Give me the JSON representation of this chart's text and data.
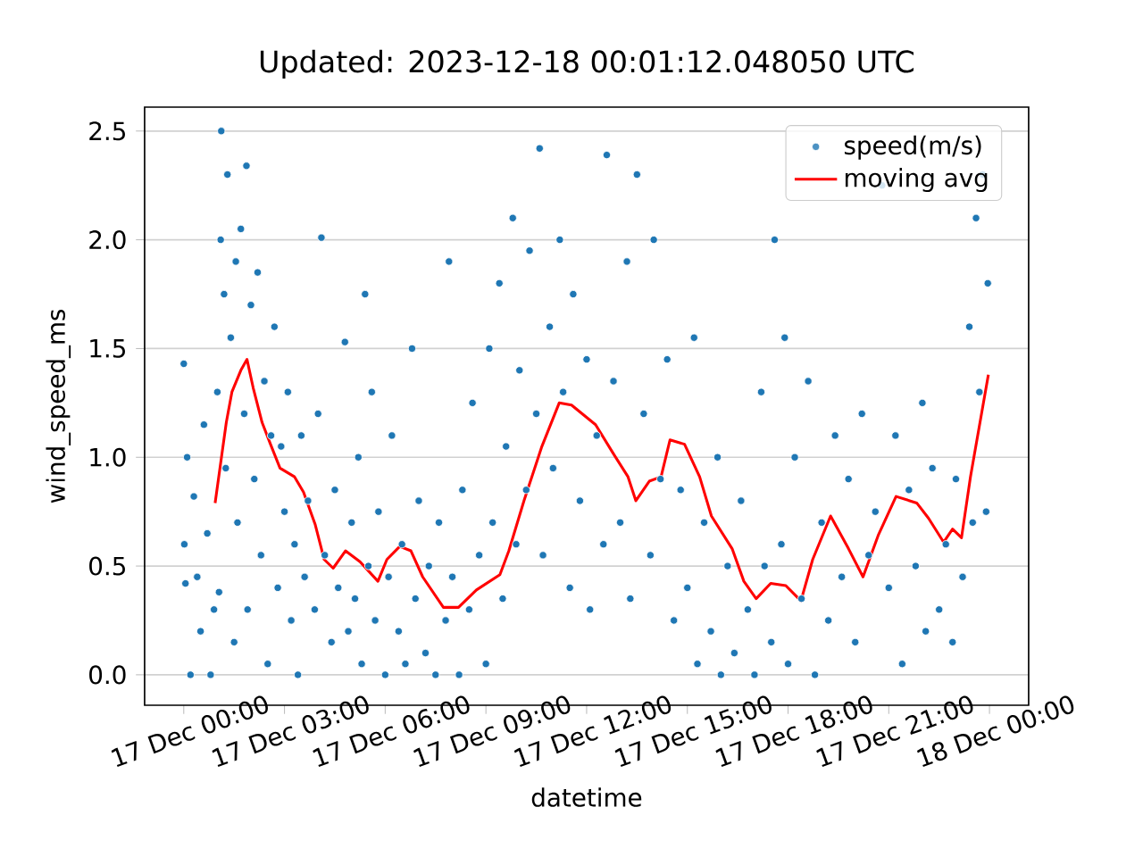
{
  "chart_data": {
    "type": "scatter",
    "title": "Updated: 2023-12-18 00:01:12.048050 UTC",
    "xlabel": "datetime",
    "ylabel": "wind_speed_ms",
    "xlim": [
      "2023-12-16T22:50",
      "2023-12-18T01:10"
    ],
    "ylim": [
      -0.14,
      2.61
    ],
    "xticks": [
      {
        "value": "2023-12-17T00:00",
        "label": "17 Dec 00:00"
      },
      {
        "value": "2023-12-17T03:00",
        "label": "17 Dec 03:00"
      },
      {
        "value": "2023-12-17T06:00",
        "label": "17 Dec 06:00"
      },
      {
        "value": "2023-12-17T09:00",
        "label": "17 Dec 09:00"
      },
      {
        "value": "2023-12-17T12:00",
        "label": "17 Dec 12:00"
      },
      {
        "value": "2023-12-17T15:00",
        "label": "17 Dec 15:00"
      },
      {
        "value": "2023-12-17T18:00",
        "label": "17 Dec 18:00"
      },
      {
        "value": "2023-12-17T21:00",
        "label": "17 Dec 21:00"
      },
      {
        "value": "2023-12-18T00:00",
        "label": "18 Dec 00:00"
      }
    ],
    "yticks": [
      {
        "value": 0,
        "label": "0.0"
      },
      {
        "value": 0.5,
        "label": "0.5"
      },
      {
        "value": 1,
        "label": "1.0"
      },
      {
        "value": 1.5,
        "label": "1.5"
      },
      {
        "value": 2,
        "label": "2.0"
      },
      {
        "value": 2.5,
        "label": "2.5"
      }
    ],
    "grid": "y",
    "legend": "top right",
    "series": [
      {
        "name": "speed(m/s)",
        "type": "scatter",
        "marker": "circle",
        "color": "#1f77b4",
        "x": [
          "2023-12-17T00:00",
          "2023-12-17T00:01",
          "2023-12-17T00:03",
          "2023-12-17T00:06",
          "2023-12-17T00:12",
          "2023-12-17T00:18",
          "2023-12-17T00:24",
          "2023-12-17T00:30",
          "2023-12-17T00:36",
          "2023-12-17T00:42",
          "2023-12-17T00:48",
          "2023-12-17T00:54",
          "2023-12-17T01:00",
          "2023-12-17T01:03",
          "2023-12-17T01:06",
          "2023-12-17T01:07",
          "2023-12-17T01:12",
          "2023-12-17T01:15",
          "2023-12-17T01:18",
          "2023-12-17T01:24",
          "2023-12-17T01:30",
          "2023-12-17T01:33",
          "2023-12-17T01:36",
          "2023-12-17T01:42",
          "2023-12-17T01:48",
          "2023-12-17T01:52",
          "2023-12-17T01:54",
          "2023-12-17T02:00",
          "2023-12-17T02:06",
          "2023-12-17T02:12",
          "2023-12-17T02:18",
          "2023-12-17T02:24",
          "2023-12-17T02:30",
          "2023-12-17T02:36",
          "2023-12-17T02:42",
          "2023-12-17T02:48",
          "2023-12-17T02:54",
          "2023-12-17T03:00",
          "2023-12-17T03:06",
          "2023-12-17T03:12",
          "2023-12-17T03:18",
          "2023-12-17T03:24",
          "2023-12-17T03:30",
          "2023-12-17T03:36",
          "2023-12-17T03:42",
          "2023-12-17T03:54",
          "2023-12-17T04:00",
          "2023-12-17T04:06",
          "2023-12-17T04:12",
          "2023-12-17T04:24",
          "2023-12-17T04:30",
          "2023-12-17T04:36",
          "2023-12-17T04:48",
          "2023-12-17T04:54",
          "2023-12-17T05:00",
          "2023-12-17T05:06",
          "2023-12-17T05:12",
          "2023-12-17T05:18",
          "2023-12-17T05:24",
          "2023-12-17T05:30",
          "2023-12-17T05:36",
          "2023-12-17T05:42",
          "2023-12-17T05:48",
          "2023-12-17T06:00",
          "2023-12-17T06:06",
          "2023-12-17T06:12",
          "2023-12-17T06:24",
          "2023-12-17T06:30",
          "2023-12-17T06:36",
          "2023-12-17T06:48",
          "2023-12-17T06:54",
          "2023-12-17T07:00",
          "2023-12-17T07:12",
          "2023-12-17T07:18",
          "2023-12-17T07:30",
          "2023-12-17T07:36",
          "2023-12-17T07:48",
          "2023-12-17T07:54",
          "2023-12-17T08:00",
          "2023-12-17T08:12",
          "2023-12-17T08:18",
          "2023-12-17T08:30",
          "2023-12-17T08:36",
          "2023-12-17T08:48",
          "2023-12-17T09:00",
          "2023-12-17T09:06",
          "2023-12-17T09:12",
          "2023-12-17T09:24",
          "2023-12-17T09:30",
          "2023-12-17T09:36",
          "2023-12-17T09:48",
          "2023-12-17T09:54",
          "2023-12-17T10:00",
          "2023-12-17T10:12",
          "2023-12-17T10:18",
          "2023-12-17T10:30",
          "2023-12-17T10:36",
          "2023-12-17T10:42",
          "2023-12-17T10:54",
          "2023-12-17T11:00",
          "2023-12-17T11:12",
          "2023-12-17T11:18",
          "2023-12-17T11:30",
          "2023-12-17T11:36",
          "2023-12-17T11:48",
          "2023-12-17T12:00",
          "2023-12-17T12:06",
          "2023-12-17T12:18",
          "2023-12-17T12:30",
          "2023-12-17T12:36",
          "2023-12-17T12:48",
          "2023-12-17T13:00",
          "2023-12-17T13:12",
          "2023-12-17T13:18",
          "2023-12-17T13:30",
          "2023-12-17T13:42",
          "2023-12-17T13:54",
          "2023-12-17T14:00",
          "2023-12-17T14:12",
          "2023-12-17T14:24",
          "2023-12-17T14:36",
          "2023-12-17T14:48",
          "2023-12-17T15:00",
          "2023-12-17T15:12",
          "2023-12-17T15:18",
          "2023-12-17T15:30",
          "2023-12-17T15:42",
          "2023-12-17T15:54",
          "2023-12-17T16:00",
          "2023-12-17T16:12",
          "2023-12-17T16:24",
          "2023-12-17T16:36",
          "2023-12-17T16:48",
          "2023-12-17T17:00",
          "2023-12-17T17:12",
          "2023-12-17T17:18",
          "2023-12-17T17:30",
          "2023-12-17T17:36",
          "2023-12-17T17:48",
          "2023-12-17T17:54",
          "2023-12-17T18:00",
          "2023-12-17T18:12",
          "2023-12-17T18:24",
          "2023-12-17T18:36",
          "2023-12-17T18:48",
          "2023-12-17T19:00",
          "2023-12-17T19:12",
          "2023-12-17T19:24",
          "2023-12-17T19:36",
          "2023-12-17T19:48",
          "2023-12-17T20:00",
          "2023-12-17T20:12",
          "2023-12-17T20:24",
          "2023-12-17T20:36",
          "2023-12-17T20:48",
          "2023-12-17T21:00",
          "2023-12-17T21:12",
          "2023-12-17T21:24",
          "2023-12-17T21:36",
          "2023-12-17T21:48",
          "2023-12-17T22:00",
          "2023-12-17T22:06",
          "2023-12-17T22:18",
          "2023-12-17T22:30",
          "2023-12-17T22:42",
          "2023-12-17T22:54",
          "2023-12-17T23:00",
          "2023-12-17T23:12",
          "2023-12-17T23:24",
          "2023-12-17T23:30",
          "2023-12-17T23:36",
          "2023-12-17T23:42",
          "2023-12-17T23:48",
          "2023-12-17T23:54",
          "2023-12-17T23:57"
        ],
        "values": [
          1.43,
          0.6,
          0.42,
          1.0,
          0.0,
          0.82,
          0.45,
          0.2,
          1.15,
          0.65,
          0.0,
          0.3,
          1.3,
          0.38,
          2.0,
          2.5,
          1.75,
          0.95,
          2.3,
          1.55,
          0.15,
          1.9,
          0.7,
          2.05,
          1.2,
          2.34,
          0.3,
          1.7,
          0.9,
          1.85,
          0.55,
          1.35,
          0.05,
          1.1,
          1.6,
          0.4,
          1.05,
          0.75,
          1.3,
          0.25,
          0.6,
          0.0,
          1.1,
          0.45,
          0.8,
          0.3,
          1.2,
          2.01,
          0.55,
          0.15,
          0.85,
          0.4,
          1.53,
          0.2,
          0.7,
          0.35,
          1.0,
          0.05,
          1.75,
          0.5,
          1.3,
          0.25,
          0.75,
          0.0,
          0.45,
          1.1,
          0.2,
          0.6,
          0.05,
          1.5,
          0.35,
          0.8,
          0.1,
          0.5,
          0.0,
          0.7,
          0.25,
          1.9,
          0.45,
          0.0,
          0.85,
          0.3,
          1.25,
          0.55,
          0.05,
          1.5,
          0.7,
          1.8,
          0.35,
          1.05,
          2.1,
          0.6,
          1.4,
          0.85,
          1.95,
          1.2,
          2.42,
          0.55,
          1.6,
          0.95,
          2.0,
          1.3,
          0.4,
          1.75,
          0.8,
          1.45,
          0.3,
          1.1,
          0.6,
          2.39,
          1.35,
          0.7,
          1.9,
          0.35,
          2.3,
          1.2,
          0.55,
          2.0,
          0.9,
          1.45,
          0.25,
          0.85,
          0.4,
          1.55,
          0.05,
          0.7,
          0.2,
          1.0,
          0.0,
          0.5,
          0.1,
          0.8,
          0.3,
          0.0,
          1.3,
          0.5,
          0.15,
          2.0,
          0.6,
          1.55,
          0.05,
          1.0,
          0.35,
          1.35,
          0.0,
          0.7,
          0.25,
          1.1,
          0.45,
          0.9,
          0.15,
          1.2,
          0.55,
          0.75,
          2.25,
          0.4,
          1.1,
          0.05,
          0.85,
          0.5,
          1.25,
          0.2,
          0.95,
          0.3,
          0.6,
          0.15,
          0.9,
          0.45,
          1.6,
          0.7,
          2.1,
          1.3,
          2.3,
          0.75,
          1.8
        ]
      },
      {
        "name": "moving avg",
        "type": "line",
        "marker": "none",
        "color": "#ff0000",
        "line_style": "solid",
        "x": [
          "2023-12-17T00:56",
          "2023-12-17T01:16",
          "2023-12-17T01:26",
          "2023-12-17T01:42",
          "2023-12-17T01:53",
          "2023-12-17T02:04",
          "2023-12-17T02:20",
          "2023-12-17T02:35",
          "2023-12-17T02:52",
          "2023-12-17T03:18",
          "2023-12-17T03:34",
          "2023-12-17T03:55",
          "2023-12-17T04:11",
          "2023-12-17T04:27",
          "2023-12-17T04:49",
          "2023-12-17T05:15",
          "2023-12-17T05:47",
          "2023-12-17T06:03",
          "2023-12-17T06:26",
          "2023-12-17T06:46",
          "2023-12-17T07:07",
          "2023-12-17T07:44",
          "2023-12-17T08:11",
          "2023-12-17T08:43",
          "2023-12-17T09:25",
          "2023-12-17T09:41",
          "2023-12-17T10:08",
          "2023-12-17T10:40",
          "2023-12-17T11:11",
          "2023-12-17T11:33",
          "2023-12-17T12:16",
          "2023-12-17T12:47",
          "2023-12-17T13:14",
          "2023-12-17T13:28",
          "2023-12-17T13:52",
          "2023-12-17T14:13",
          "2023-12-17T14:29",
          "2023-12-17T14:55",
          "2023-12-17T15:22",
          "2023-12-17T15:43",
          "2023-12-17T16:20",
          "2023-12-17T16:41",
          "2023-12-17T17:03",
          "2023-12-17T17:29",
          "2023-12-17T17:56",
          "2023-12-17T18:23",
          "2023-12-17T18:44",
          "2023-12-17T19:16",
          "2023-12-17T19:48",
          "2023-12-17T20:14",
          "2023-12-17T20:41",
          "2023-12-17T21:13",
          "2023-12-17T21:50",
          "2023-12-17T22:11",
          "2023-12-17T22:38",
          "2023-12-17T22:54",
          "2023-12-17T23:10",
          "2023-12-17T23:26",
          "2023-12-17T23:58"
        ],
        "values": [
          0.79,
          1.16,
          1.3,
          1.4,
          1.45,
          1.32,
          1.16,
          1.06,
          0.95,
          0.91,
          0.84,
          0.69,
          0.53,
          0.49,
          0.57,
          0.52,
          0.43,
          0.53,
          0.59,
          0.57,
          0.45,
          0.31,
          0.31,
          0.39,
          0.46,
          0.57,
          0.8,
          1.05,
          1.25,
          1.24,
          1.15,
          1.02,
          0.91,
          0.8,
          0.89,
          0.91,
          1.08,
          1.06,
          0.91,
          0.73,
          0.58,
          0.43,
          0.35,
          0.42,
          0.41,
          0.34,
          0.53,
          0.73,
          0.58,
          0.45,
          0.64,
          0.82,
          0.79,
          0.72,
          0.61,
          0.67,
          0.63,
          0.91,
          1.38
        ]
      }
    ]
  }
}
